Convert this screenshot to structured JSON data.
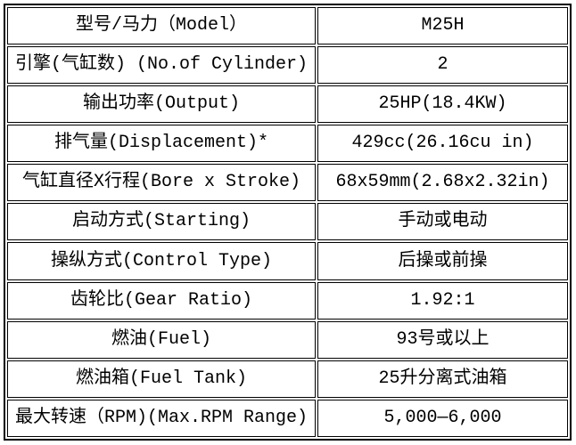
{
  "table": {
    "title": "engine-specification-table",
    "model_code": "M25H",
    "border_color": "#000000",
    "background_color": "#ffffff",
    "text_color": "#000000",
    "columns": [
      "spec-label",
      "spec-value"
    ],
    "rows": [
      {
        "label": "型号/马力（Model）",
        "value": "M25H"
      },
      {
        "label": "引擎(气缸数) (No.of Cylinder)",
        "value": "2"
      },
      {
        "label": "输出功率(Output)",
        "value": "25HP(18.4KW)"
      },
      {
        "label": "排气量(Displacement)*",
        "value": "429cc(26.16cu in)"
      },
      {
        "label": "气缸直径X行程(Bore x Stroke)",
        "value": "68x59mm(2.68x2.32in)"
      },
      {
        "label": "启动方式(Starting)",
        "value": "手动或电动"
      },
      {
        "label": "操纵方式(Control Type)",
        "value": "后操或前操"
      },
      {
        "label": "齿轮比(Gear Ratio)",
        "value": "1.92:1"
      },
      {
        "label": "燃油(Fuel)",
        "value": "93号或以上"
      },
      {
        "label": "燃油箱(Fuel Tank)",
        "value": "25升分离式油箱"
      },
      {
        "label": "最大转速（RPM)(Max.RPM Range)",
        "value": "5,000—6,000"
      }
    ]
  }
}
